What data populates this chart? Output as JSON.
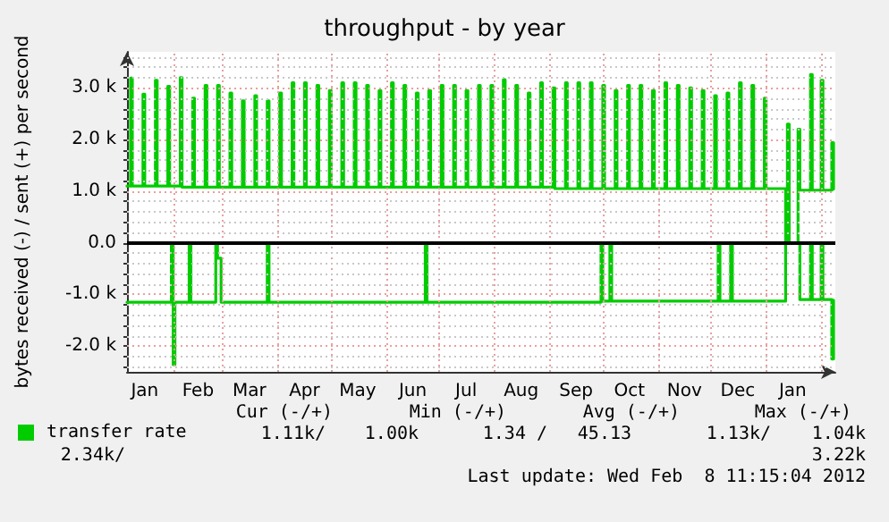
{
  "chart_data": {
    "type": "step",
    "title": "throughput - by year",
    "ylabel": "bytes received (-) / sent (+) per second",
    "xlim": [
      "2011-01-06",
      "2012-02-09"
    ],
    "xticks": [
      {
        "value": "2011-01-16",
        "label": "Jan"
      },
      {
        "value": "2011-02-01",
        "label": null
      },
      {
        "value": "2011-02-15",
        "label": "Feb"
      },
      {
        "value": "2011-03-01",
        "label": null
      },
      {
        "value": "2011-03-16",
        "label": "Mar"
      },
      {
        "value": "2011-04-01",
        "label": null
      },
      {
        "value": "2011-04-16",
        "label": "Apr"
      },
      {
        "value": "2011-05-01",
        "label": null
      },
      {
        "value": "2011-05-16",
        "label": "May"
      },
      {
        "value": "2011-06-01",
        "label": null
      },
      {
        "value": "2011-06-16",
        "label": "Jun"
      },
      {
        "value": "2011-07-01",
        "label": null
      },
      {
        "value": "2011-07-16",
        "label": "Jul"
      },
      {
        "value": "2011-08-01",
        "label": null
      },
      {
        "value": "2011-08-16",
        "label": "Aug"
      },
      {
        "value": "2011-09-01",
        "label": null
      },
      {
        "value": "2011-09-16",
        "label": "Sep"
      },
      {
        "value": "2011-10-01",
        "label": null
      },
      {
        "value": "2011-10-16",
        "label": "Oct"
      },
      {
        "value": "2011-11-01",
        "label": null
      },
      {
        "value": "2011-11-16",
        "label": "Nov"
      },
      {
        "value": "2011-12-01",
        "label": null
      },
      {
        "value": "2011-12-16",
        "label": "Dec"
      },
      {
        "value": "2012-01-01",
        "label": null
      },
      {
        "value": "2012-01-16",
        "label": "Jan"
      },
      {
        "value": "2012-02-01",
        "label": null
      }
    ],
    "ylim": [
      -2500,
      3700
    ],
    "yticks": [
      {
        "value": -2400,
        "label": null
      },
      {
        "value": -2200,
        "label": null
      },
      {
        "value": -2000,
        "label": "-2.0 k"
      },
      {
        "value": -1800,
        "label": null
      },
      {
        "value": -1600,
        "label": null
      },
      {
        "value": -1400,
        "label": null
      },
      {
        "value": -1200,
        "label": null
      },
      {
        "value": -1000,
        "label": "-1.0 k"
      },
      {
        "value": -800,
        "label": null
      },
      {
        "value": -600,
        "label": null
      },
      {
        "value": -400,
        "label": null
      },
      {
        "value": -200,
        "label": null
      },
      {
        "value": 0,
        "label": "0.0"
      },
      {
        "value": 200,
        "label": null
      },
      {
        "value": 400,
        "label": null
      },
      {
        "value": 600,
        "label": null
      },
      {
        "value": 800,
        "label": null
      },
      {
        "value": 1000,
        "label": "1.0 k"
      },
      {
        "value": 1200,
        "label": null
      },
      {
        "value": 1400,
        "label": null
      },
      {
        "value": 1600,
        "label": null
      },
      {
        "value": 1800,
        "label": null
      },
      {
        "value": 2000,
        "label": "2.0 k"
      },
      {
        "value": 2200,
        "label": null
      },
      {
        "value": 2400,
        "label": null
      },
      {
        "value": 2600,
        "label": null
      },
      {
        "value": 2800,
        "label": null
      },
      {
        "value": 3000,
        "label": "3.0 k"
      },
      {
        "value": 3200,
        "label": null
      },
      {
        "value": 3400,
        "label": null
      },
      {
        "value": 3600,
        "label": null
      }
    ],
    "grid": true,
    "legend": "bottom left",
    "marker": "none",
    "line_style": "solid",
    "ref_lines": [
      {
        "axis": "y",
        "value": 0,
        "label": null,
        "color": "#000000"
      }
    ],
    "series": [
      {
        "name": "transfer rate",
        "color": "#00cc00",
        "x": [
          "2011-01-06",
          "2011-01-08",
          "2011-01-09",
          "2011-01-15",
          "2011-01-16",
          "2011-01-22",
          "2011-01-23",
          "2011-01-29",
          "2011-01-30",
          "2011-02-05",
          "2011-02-06",
          "2011-02-12",
          "2011-02-13",
          "2011-02-19",
          "2011-02-20",
          "2011-02-26",
          "2011-02-27",
          "2011-03-05",
          "2011-03-06",
          "2011-03-12",
          "2011-03-13",
          "2011-03-19",
          "2011-03-20",
          "2011-03-26",
          "2011-03-27",
          "2011-04-02",
          "2011-04-03",
          "2011-04-09",
          "2011-04-10",
          "2011-04-16",
          "2011-04-17",
          "2011-04-23",
          "2011-04-24",
          "2011-04-30",
          "2011-05-01",
          "2011-05-07",
          "2011-05-08",
          "2011-05-14",
          "2011-05-15",
          "2011-05-21",
          "2011-05-22",
          "2011-05-28",
          "2011-05-29",
          "2011-06-04",
          "2011-06-05",
          "2011-06-11",
          "2011-06-12",
          "2011-06-18",
          "2011-06-19",
          "2011-06-25",
          "2011-06-26",
          "2011-07-02",
          "2011-07-03",
          "2011-07-09",
          "2011-07-10",
          "2011-07-16",
          "2011-07-17",
          "2011-07-23",
          "2011-07-24",
          "2011-07-30",
          "2011-07-31",
          "2011-08-06",
          "2011-08-07",
          "2011-08-13",
          "2011-08-14",
          "2011-08-20",
          "2011-08-21",
          "2011-08-27",
          "2011-08-28",
          "2011-09-03",
          "2011-09-04",
          "2011-09-10",
          "2011-09-11",
          "2011-09-17",
          "2011-09-18",
          "2011-09-24",
          "2011-09-25",
          "2011-10-01",
          "2011-10-02",
          "2011-10-08",
          "2011-10-09",
          "2011-10-15",
          "2011-10-16",
          "2011-10-22",
          "2011-10-23",
          "2011-10-29",
          "2011-10-30",
          "2011-11-05",
          "2011-11-06",
          "2011-11-12",
          "2011-11-13",
          "2011-11-19",
          "2011-11-20",
          "2011-11-26",
          "2011-11-27",
          "2011-12-03",
          "2011-12-04",
          "2011-12-10",
          "2011-12-11",
          "2011-12-17",
          "2011-12-18",
          "2011-12-24",
          "2011-12-25",
          "2011-12-31",
          "2012-01-01",
          "2012-01-12",
          "2012-01-13",
          "2012-01-14",
          "2012-01-19",
          "2012-01-20",
          "2012-01-26",
          "2012-01-27",
          "2012-02-01",
          "2012-02-02",
          "2012-02-07",
          "2012-02-08"
        ],
        "values": [
          1100,
          3190,
          1100,
          2880,
          1100,
          3150,
          1100,
          3030,
          1100,
          3200,
          1080,
          2800,
          1080,
          3050,
          1080,
          3050,
          1080,
          2900,
          1080,
          2750,
          1080,
          2850,
          1080,
          2750,
          1080,
          2900,
          1080,
          3100,
          1080,
          3100,
          1080,
          3050,
          1080,
          2950,
          1080,
          3100,
          1080,
          3100,
          1080,
          3050,
          1080,
          2950,
          1080,
          3100,
          1080,
          3050,
          1080,
          2900,
          1080,
          2950,
          1080,
          3050,
          1080,
          3050,
          1080,
          2950,
          1080,
          3050,
          1080,
          3050,
          1080,
          3160,
          1080,
          3050,
          1080,
          2900,
          1080,
          3100,
          1080,
          3000,
          1050,
          3100,
          1050,
          3100,
          1050,
          3100,
          1050,
          3050,
          1050,
          2950,
          1050,
          3050,
          1050,
          3050,
          1050,
          2950,
          1050,
          3100,
          1050,
          3050,
          1050,
          3000,
          1050,
          2950,
          1050,
          2850,
          1050,
          2900,
          1050,
          3100,
          1050,
          3050,
          1050,
          2800,
          1050,
          0,
          2300,
          0,
          2200,
          1020,
          3260,
          1020,
          3150,
          1020,
          1940,
          1040
        ]
      },
      {
        "color": "#00cc00",
        "x": [
          "2011-01-06",
          "2011-01-31",
          "2011-02-01",
          "2011-02-02",
          "2011-02-10",
          "2011-02-11",
          "2011-02-25",
          "2011-02-26",
          "2011-02-28",
          "2011-03-26",
          "2011-03-27",
          "2011-06-23",
          "2011-06-24",
          "2011-09-30",
          "2011-10-01",
          "2011-10-05",
          "2011-10-06",
          "2011-12-05",
          "2011-12-06",
          "2011-12-12",
          "2011-12-13",
          "2012-01-12",
          "2012-01-20",
          "2012-01-26",
          "2012-01-27",
          "2012-02-01",
          "2012-02-02",
          "2012-02-07",
          "2012-02-08"
        ],
        "values": [
          -1150,
          0,
          -2360,
          -1150,
          0,
          -1150,
          0,
          -300,
          -1150,
          0,
          -1150,
          0,
          -1150,
          0,
          -1130,
          0,
          -1130,
          0,
          -1130,
          0,
          -1130,
          0,
          -1100,
          0,
          -1100,
          0,
          -1100,
          -2250,
          -1110
        ]
      }
    ],
    "annotations": [
      "Cur (-/+)",
      "Min (-/+)",
      "Avg (-/+)",
      "Max (-/+)",
      "1.11k/",
      "1.00k",
      "1.34 /",
      "45.13",
      "1.13k/",
      "1.04k",
      "2.34k/",
      "3.22k",
      "Last update: Wed Feb  8 11:15:04 2012"
    ]
  }
}
